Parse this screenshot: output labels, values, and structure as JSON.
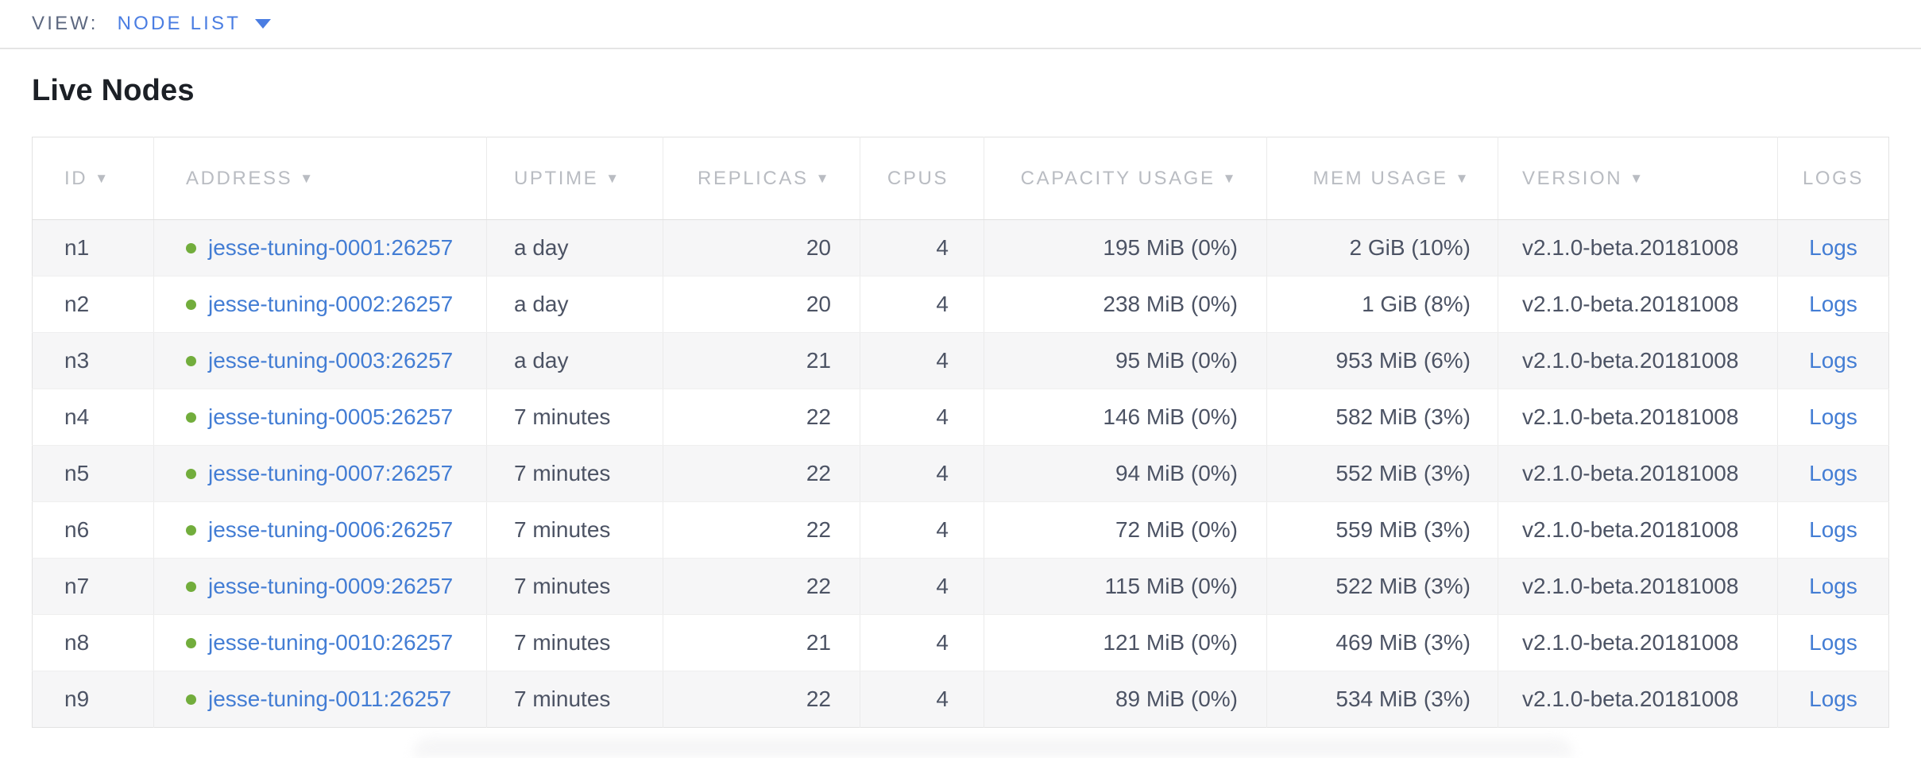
{
  "view_bar": {
    "label": "VIEW:",
    "selected": "NODE LIST"
  },
  "page": {
    "title": "Live Nodes"
  },
  "icons": {
    "sort_arrow": "▼",
    "dropdown_caret": "▼",
    "live_status_dot": "●"
  },
  "colors": {
    "link": "#437dd4",
    "view_link": "#4a7de2",
    "live_dot": "#72ad3c",
    "header_text": "#b9bcc2",
    "body_text": "#4c5364"
  },
  "table": {
    "columns": [
      {
        "key": "id",
        "label": "ID",
        "sortable": true
      },
      {
        "key": "address",
        "label": "ADDRESS",
        "sortable": true
      },
      {
        "key": "uptime",
        "label": "UPTIME",
        "sortable": true
      },
      {
        "key": "replicas",
        "label": "REPLICAS",
        "sortable": true
      },
      {
        "key": "cpus",
        "label": "CPUS",
        "sortable": false
      },
      {
        "key": "capacity_usage",
        "label": "CAPACITY USAGE",
        "sortable": true
      },
      {
        "key": "mem_usage",
        "label": "MEM USAGE",
        "sortable": true
      },
      {
        "key": "version",
        "label": "VERSION",
        "sortable": true
      },
      {
        "key": "logs",
        "label": "LOGS",
        "sortable": false
      }
    ],
    "rows": [
      {
        "id": "n1",
        "address": "jesse-tuning-0001:26257",
        "uptime": "a day",
        "replicas": "20",
        "cpus": "4",
        "capacity_usage": "195 MiB (0%)",
        "mem_usage": "2 GiB (10%)",
        "version": "v2.1.0-beta.20181008",
        "logs": "Logs"
      },
      {
        "id": "n2",
        "address": "jesse-tuning-0002:26257",
        "uptime": "a day",
        "replicas": "20",
        "cpus": "4",
        "capacity_usage": "238 MiB (0%)",
        "mem_usage": "1 GiB (8%)",
        "version": "v2.1.0-beta.20181008",
        "logs": "Logs"
      },
      {
        "id": "n3",
        "address": "jesse-tuning-0003:26257",
        "uptime": "a day",
        "replicas": "21",
        "cpus": "4",
        "capacity_usage": "95 MiB (0%)",
        "mem_usage": "953 MiB (6%)",
        "version": "v2.1.0-beta.20181008",
        "logs": "Logs"
      },
      {
        "id": "n4",
        "address": "jesse-tuning-0005:26257",
        "uptime": "7 minutes",
        "replicas": "22",
        "cpus": "4",
        "capacity_usage": "146 MiB (0%)",
        "mem_usage": "582 MiB (3%)",
        "version": "v2.1.0-beta.20181008",
        "logs": "Logs"
      },
      {
        "id": "n5",
        "address": "jesse-tuning-0007:26257",
        "uptime": "7 minutes",
        "replicas": "22",
        "cpus": "4",
        "capacity_usage": "94 MiB (0%)",
        "mem_usage": "552 MiB (3%)",
        "version": "v2.1.0-beta.20181008",
        "logs": "Logs"
      },
      {
        "id": "n6",
        "address": "jesse-tuning-0006:26257",
        "uptime": "7 minutes",
        "replicas": "22",
        "cpus": "4",
        "capacity_usage": "72 MiB (0%)",
        "mem_usage": "559 MiB (3%)",
        "version": "v2.1.0-beta.20181008",
        "logs": "Logs"
      },
      {
        "id": "n7",
        "address": "jesse-tuning-0009:26257",
        "uptime": "7 minutes",
        "replicas": "22",
        "cpus": "4",
        "capacity_usage": "115 MiB (0%)",
        "mem_usage": "522 MiB (3%)",
        "version": "v2.1.0-beta.20181008",
        "logs": "Logs"
      },
      {
        "id": "n8",
        "address": "jesse-tuning-0010:26257",
        "uptime": "7 minutes",
        "replicas": "21",
        "cpus": "4",
        "capacity_usage": "121 MiB (0%)",
        "mem_usage": "469 MiB (3%)",
        "version": "v2.1.0-beta.20181008",
        "logs": "Logs"
      },
      {
        "id": "n9",
        "address": "jesse-tuning-0011:26257",
        "uptime": "7 minutes",
        "replicas": "22",
        "cpus": "4",
        "capacity_usage": "89 MiB (0%)",
        "mem_usage": "534 MiB (3%)",
        "version": "v2.1.0-beta.20181008",
        "logs": "Logs"
      }
    ]
  }
}
